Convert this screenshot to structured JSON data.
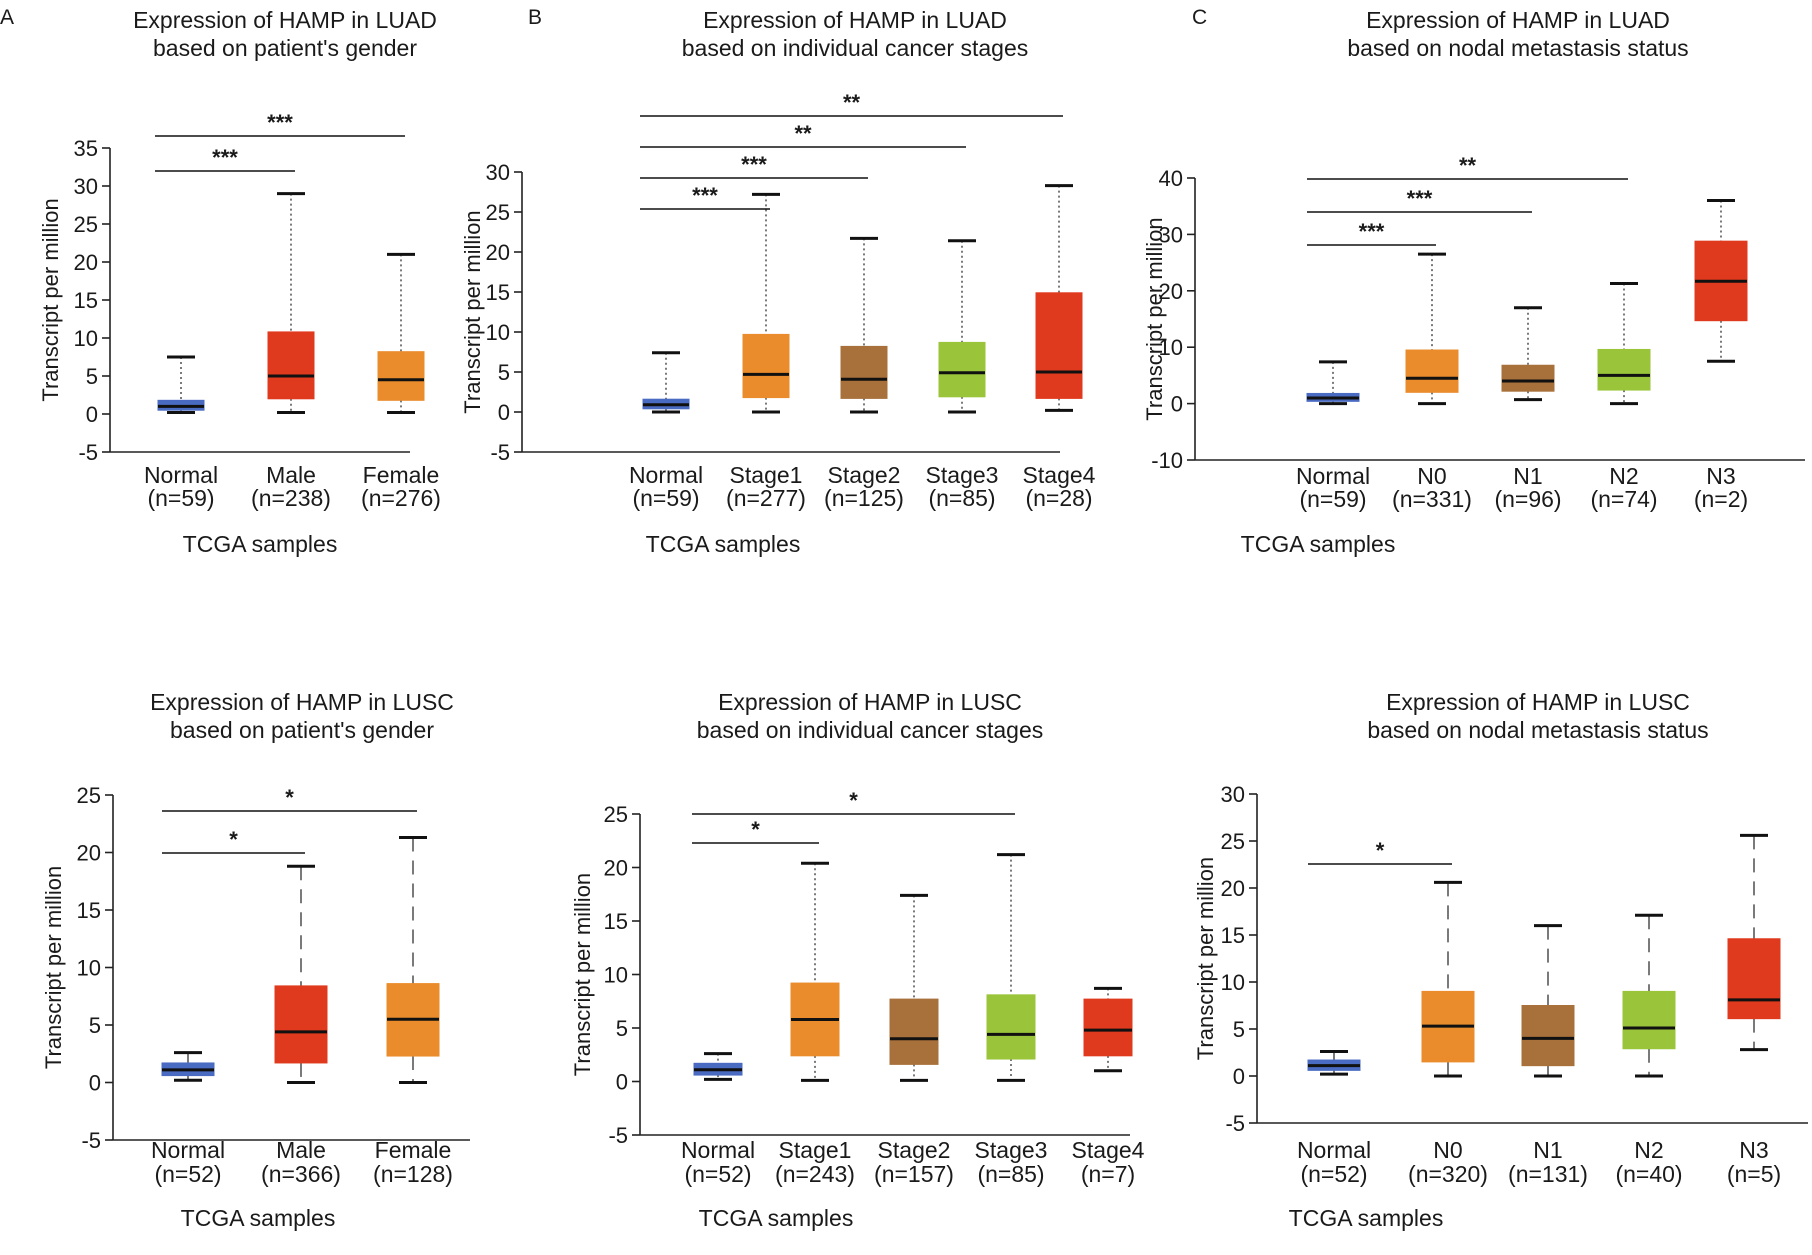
{
  "colors": {
    "normal": "#4a6bc2",
    "tumor_red": "#e03a1e",
    "orange": "#ea8c2c",
    "brown": "#a8703a",
    "green": "#9ac43a"
  },
  "chart_data": [
    {
      "panel": "A",
      "type": "box",
      "title": [
        "Expression of HAMP in LUAD",
        "based on patient's gender"
      ],
      "ylabel": "Transcript per million",
      "xlabel": "TCGA samples",
      "ylim": [
        -5,
        35
      ],
      "yticks": [
        -5,
        0,
        5,
        10,
        15,
        20,
        25,
        30,
        35
      ],
      "whisker_style": "dotted",
      "boxes": [
        {
          "label": "Normal",
          "n": "(n=59)",
          "color": "#4a6bc2",
          "min": 0.2,
          "q1": 0.5,
          "median": 1.0,
          "q3": 1.8,
          "max": 7.5
        },
        {
          "label": "Male",
          "n": "(n=238)",
          "color": "#e03a1e",
          "min": 0.2,
          "q1": 2.0,
          "median": 5.0,
          "q3": 10.8,
          "max": 29.0
        },
        {
          "label": "Female",
          "n": "(n=276)",
          "color": "#ea8c2c",
          "min": 0.2,
          "q1": 1.8,
          "median": 4.5,
          "q3": 8.2,
          "max": 21.0
        }
      ],
      "significance": [
        {
          "from": 0,
          "to": 1,
          "label": "***",
          "level": 0
        },
        {
          "from": 0,
          "to": 2,
          "label": "***",
          "level": 1
        }
      ]
    },
    {
      "panel": "B",
      "type": "box",
      "title": [
        "Expression of HAMP in LUAD",
        "based on individual cancer stages"
      ],
      "ylabel": "Transcript per million",
      "xlabel": "TCGA samples",
      "ylim": [
        -5,
        30
      ],
      "yticks": [
        -5,
        0,
        5,
        10,
        15,
        20,
        25,
        30
      ],
      "whisker_style": "dotted",
      "boxes": [
        {
          "label": "Normal",
          "n": "(n=59)",
          "color": "#4a6bc2",
          "min": 0.0,
          "q1": 0.4,
          "median": 0.9,
          "q3": 1.6,
          "max": 7.4
        },
        {
          "label": "Stage1",
          "n": "(n=277)",
          "color": "#ea8c2c",
          "min": 0.0,
          "q1": 1.8,
          "median": 4.7,
          "q3": 9.7,
          "max": 27.2
        },
        {
          "label": "Stage2",
          "n": "(n=125)",
          "color": "#a8703a",
          "min": 0.0,
          "q1": 1.7,
          "median": 4.1,
          "q3": 8.2,
          "max": 21.7
        },
        {
          "label": "Stage3",
          "n": "(n=85)",
          "color": "#9ac43a",
          "min": 0.0,
          "q1": 1.9,
          "median": 4.9,
          "q3": 8.7,
          "max": 21.4
        },
        {
          "label": "Stage4",
          "n": "(n=28)",
          "color": "#e03a1e",
          "min": 0.2,
          "q1": 1.7,
          "median": 5.0,
          "q3": 14.9,
          "max": 28.3
        }
      ],
      "significance": [
        {
          "from": 0,
          "to": 1,
          "label": "***",
          "level": 0
        },
        {
          "from": 0,
          "to": 2,
          "label": "***",
          "level": 1
        },
        {
          "from": 0,
          "to": 3,
          "label": "**",
          "level": 2
        },
        {
          "from": 0,
          "to": 4,
          "label": "**",
          "level": 3
        }
      ]
    },
    {
      "panel": "C",
      "type": "box",
      "title": [
        "Expression of HAMP in LUAD",
        "based on nodal metastasis status"
      ],
      "ylabel": "Transcript per million",
      "xlabel": "TCGA samples",
      "ylim": [
        -10,
        40
      ],
      "yticks": [
        -10,
        0,
        10,
        20,
        30,
        40
      ],
      "whisker_style": "dotted",
      "boxes": [
        {
          "label": "Normal",
          "n": "(n=59)",
          "color": "#4a6bc2",
          "min": 0.0,
          "q1": 0.4,
          "median": 1.0,
          "q3": 1.8,
          "max": 7.4
        },
        {
          "label": "N0",
          "n": "(n=331)",
          "color": "#ea8c2c",
          "min": 0.0,
          "q1": 2.0,
          "median": 4.5,
          "q3": 9.5,
          "max": 26.5
        },
        {
          "label": "N1",
          "n": "(n=96)",
          "color": "#a8703a",
          "min": 0.7,
          "q1": 2.2,
          "median": 4.0,
          "q3": 6.8,
          "max": 17.0
        },
        {
          "label": "N2",
          "n": "(n=74)",
          "color": "#9ac43a",
          "min": 0.0,
          "q1": 2.4,
          "median": 5.0,
          "q3": 9.6,
          "max": 21.3
        },
        {
          "label": "N3",
          "n": "(n=2)",
          "color": "#e03a1e",
          "min": 7.5,
          "q1": 14.7,
          "median": 21.7,
          "q3": 28.8,
          "max": 36.0
        }
      ],
      "significance": [
        {
          "from": 0,
          "to": 1,
          "label": "***",
          "level": 0
        },
        {
          "from": 0,
          "to": 2,
          "label": "***",
          "level": 1
        },
        {
          "from": 0,
          "to": 3,
          "label": "**",
          "level": 2
        }
      ]
    },
    {
      "panel": "",
      "type": "box",
      "title": [
        "Expression of HAMP in LUSC",
        "based on patient's gender"
      ],
      "ylabel": "Transcript per million",
      "xlabel": "TCGA samples",
      "ylim": [
        -5,
        25
      ],
      "yticks": [
        -5,
        0,
        5,
        10,
        15,
        20,
        25
      ],
      "whisker_style": "dashed",
      "boxes": [
        {
          "label": "Normal",
          "n": "(n=52)",
          "color": "#4a6bc2",
          "min": 0.2,
          "q1": 0.6,
          "median": 1.1,
          "q3": 1.7,
          "max": 2.6
        },
        {
          "label": "Male",
          "n": "(n=366)",
          "color": "#e03a1e",
          "min": 0.0,
          "q1": 1.7,
          "median": 4.4,
          "q3": 8.4,
          "max": 18.8
        },
        {
          "label": "Female",
          "n": "(n=128)",
          "color": "#ea8c2c",
          "min": 0.0,
          "q1": 2.3,
          "median": 5.5,
          "q3": 8.6,
          "max": 21.3
        }
      ],
      "significance": [
        {
          "from": 0,
          "to": 1,
          "label": "*",
          "level": 0
        },
        {
          "from": 0,
          "to": 2,
          "label": "*",
          "level": 1
        }
      ]
    },
    {
      "panel": "",
      "type": "box",
      "title": [
        "Expression of HAMP in LUSC",
        "based on individual cancer stages"
      ],
      "ylabel": "Transcript per million",
      "xlabel": "TCGA samples",
      "ylim": [
        -5,
        25
      ],
      "yticks": [
        -5,
        0,
        5,
        10,
        15,
        20,
        25
      ],
      "whisker_style": "dotted",
      "boxes": [
        {
          "label": "Normal",
          "n": "(n=52)",
          "color": "#4a6bc2",
          "min": 0.2,
          "q1": 0.6,
          "median": 1.1,
          "q3": 1.7,
          "max": 2.6
        },
        {
          "label": "Stage1",
          "n": "(n=243)",
          "color": "#ea8c2c",
          "min": 0.1,
          "q1": 2.4,
          "median": 5.8,
          "q3": 9.2,
          "max": 20.4
        },
        {
          "label": "Stage2",
          "n": "(n=157)",
          "color": "#a8703a",
          "min": 0.1,
          "q1": 1.6,
          "median": 4.0,
          "q3": 7.7,
          "max": 17.4
        },
        {
          "label": "Stage3",
          "n": "(n=85)",
          "color": "#9ac43a",
          "min": 0.1,
          "q1": 2.1,
          "median": 4.4,
          "q3": 8.1,
          "max": 21.2
        },
        {
          "label": "Stage4",
          "n": "(n=7)",
          "color": "#e03a1e",
          "min": 1.0,
          "q1": 2.4,
          "median": 4.8,
          "q3": 7.7,
          "max": 8.7
        }
      ],
      "significance": [
        {
          "from": 0,
          "to": 1,
          "label": "*",
          "level": 0
        },
        {
          "from": 0,
          "to": 3,
          "label": "*",
          "level": 1
        }
      ]
    },
    {
      "panel": "",
      "type": "box",
      "title": [
        "Expression of HAMP in LUSC",
        "based on nodal metastasis status"
      ],
      "ylabel": "Transcript per million",
      "xlabel": "TCGA samples",
      "ylim": [
        -5,
        30
      ],
      "yticks": [
        -5,
        0,
        5,
        10,
        15,
        20,
        25,
        30
      ],
      "whisker_style": "dashed",
      "boxes": [
        {
          "label": "Normal",
          "n": "(n=52)",
          "color": "#4a6bc2",
          "min": 0.2,
          "q1": 0.6,
          "median": 1.1,
          "q3": 1.7,
          "max": 2.6
        },
        {
          "label": "N0",
          "n": "(n=320)",
          "color": "#ea8c2c",
          "min": 0.0,
          "q1": 1.5,
          "median": 5.3,
          "q3": 9.0,
          "max": 20.6
        },
        {
          "label": "N1",
          "n": "(n=131)",
          "color": "#a8703a",
          "min": 0.0,
          "q1": 1.1,
          "median": 4.0,
          "q3": 7.5,
          "max": 16.0
        },
        {
          "label": "N2",
          "n": "(n=40)",
          "color": "#9ac43a",
          "min": 0.0,
          "q1": 2.9,
          "median": 5.1,
          "q3": 9.0,
          "max": 17.1
        },
        {
          "label": "N3",
          "n": "(n=5)",
          "color": "#e03a1e",
          "min": 2.8,
          "q1": 6.1,
          "median": 8.1,
          "q3": 14.6,
          "max": 25.6
        }
      ],
      "significance": [
        {
          "from": 0,
          "to": 1,
          "label": "*",
          "level": 0
        }
      ]
    }
  ]
}
